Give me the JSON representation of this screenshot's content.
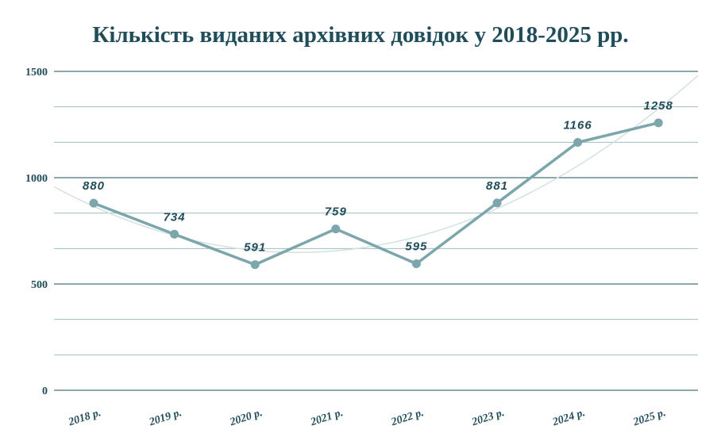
{
  "chart_data": {
    "type": "line",
    "title": "Кількість виданих архівних довідок у 2018-2025 рр.",
    "xlabel": "",
    "ylabel": "",
    "categories": [
      "2018 р.",
      "2019 р.",
      "2020 р.",
      "2021 р.",
      "2022 р.",
      "2023 р.",
      "2024 р.",
      "2025 р."
    ],
    "series": [
      {
        "values": [
          880,
          734,
          591,
          759,
          595,
          881,
          1166,
          1258
        ]
      }
    ],
    "trendline": {
      "type": "polynomial",
      "order": 2
    },
    "ylim": [
      0,
      1500
    ],
    "yticks": [
      0,
      500,
      1000,
      1500
    ],
    "grid": true,
    "legend": "none",
    "colors": {
      "line": "#7aa6ac",
      "trend": "#d3e1e2",
      "grid_major": "#1e4e5c",
      "grid_minor": "#8fb3b8",
      "text": "#1e4e5c"
    }
  }
}
